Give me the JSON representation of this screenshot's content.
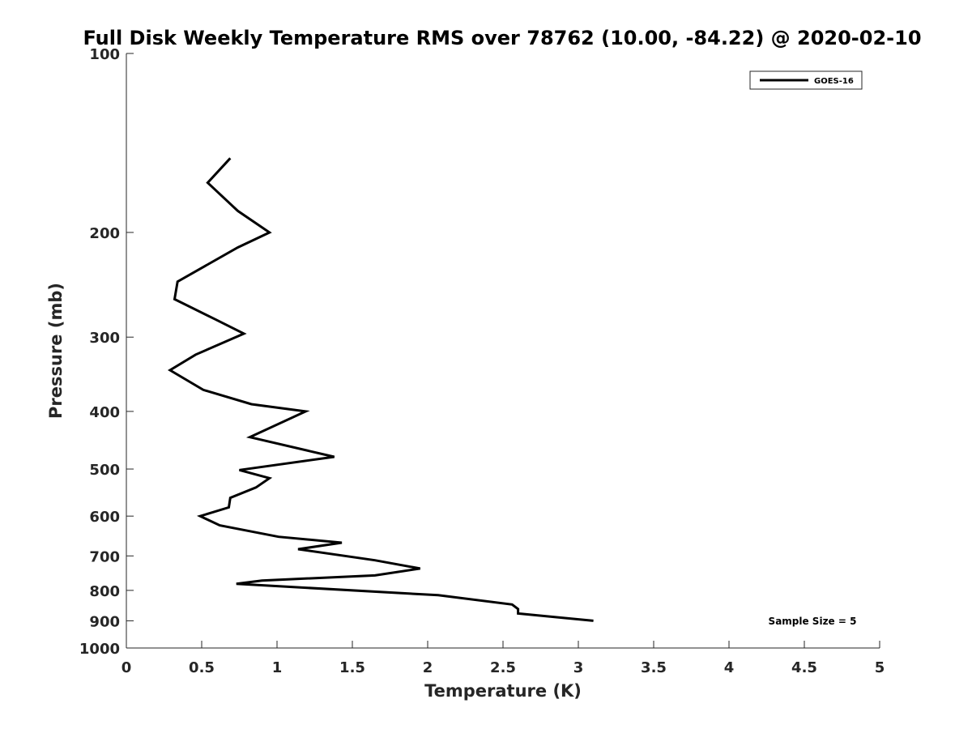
{
  "chart_data": {
    "type": "line",
    "title": "Full Disk Weekly Temperature RMS over 78762 (10.00, -84.22) @ 2020-02-10",
    "xlabel": "Temperature (K)",
    "ylabel": "Pressure (mb)",
    "xlim": [
      0,
      5
    ],
    "ylim": [
      100,
      1000
    ],
    "y_scale": "log",
    "y_reversed": true,
    "xticks": [
      0,
      0.5,
      1,
      1.5,
      2,
      2.5,
      3,
      3.5,
      4,
      4.5,
      5
    ],
    "xtick_labels": [
      "0",
      "0.5",
      "1",
      "1.5",
      "2",
      "2.5",
      "3",
      "3.5",
      "4",
      "4.5",
      "5"
    ],
    "yticks": [
      100,
      200,
      300,
      400,
      500,
      600,
      700,
      800,
      900,
      1000
    ],
    "ytick_labels": [
      "100",
      "200",
      "300",
      "400",
      "500",
      "600",
      "700",
      "800",
      "900",
      "1000"
    ],
    "grid": false,
    "legend_position": "top-right",
    "annotation": "Sample Size = 5",
    "series": [
      {
        "name": "GOES-16",
        "color": "#000000",
        "x": [
          0.69,
          0.54,
          0.74,
          0.95,
          0.74,
          0.34,
          0.32,
          0.59,
          0.78,
          0.46,
          0.29,
          0.51,
          0.83,
          1.19,
          0.82,
          1.38,
          0.75,
          0.95,
          0.86,
          0.69,
          0.68,
          0.49,
          0.62,
          1.01,
          1.43,
          1.14,
          1.65,
          1.95,
          1.65,
          0.9,
          0.73,
          2.07,
          2.56,
          2.6,
          2.6,
          3.1
        ],
        "y": [
          150,
          165,
          184,
          200,
          212,
          242,
          259,
          280,
          296,
          321,
          341,
          368,
          389,
          400,
          442,
          477,
          502,
          518,
          537,
          559,
          580,
          600,
          622,
          650,
          665,
          682,
          712,
          735,
          755,
          770,
          780,
          815,
          845,
          860,
          875,
          900
        ]
      }
    ]
  }
}
